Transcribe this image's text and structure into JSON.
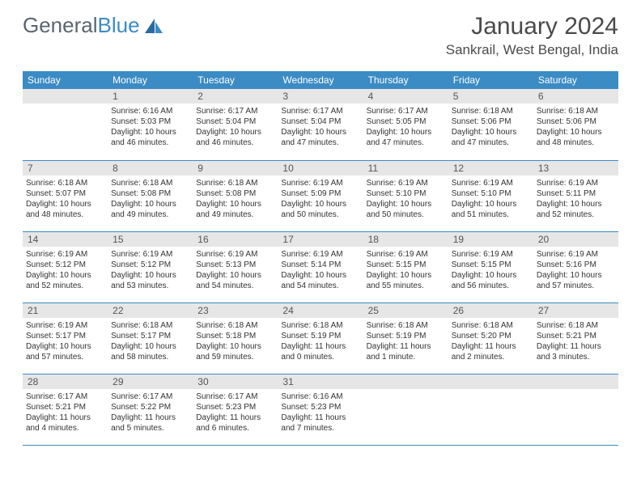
{
  "brand": {
    "name1": "General",
    "name2": "Blue"
  },
  "title": "January 2024",
  "location": "Sankrail, West Bengal, India",
  "colors": {
    "header_bg": "#3b8bc4",
    "header_text": "#ffffff",
    "daynum_bg": "#e6e6e6",
    "daynum_text": "#555555",
    "body_text": "#333333",
    "title_text": "#4a4a4a",
    "logo_gray": "#5a6570",
    "logo_blue": "#3b8bc4",
    "row_border": "#3b8bc4"
  },
  "weekdays": [
    "Sunday",
    "Monday",
    "Tuesday",
    "Wednesday",
    "Thursday",
    "Friday",
    "Saturday"
  ],
  "first_weekday_offset": 1,
  "days": [
    {
      "n": 1,
      "sunrise": "6:16 AM",
      "sunset": "5:03 PM",
      "daylight": "10 hours and 46 minutes."
    },
    {
      "n": 2,
      "sunrise": "6:17 AM",
      "sunset": "5:04 PM",
      "daylight": "10 hours and 46 minutes."
    },
    {
      "n": 3,
      "sunrise": "6:17 AM",
      "sunset": "5:04 PM",
      "daylight": "10 hours and 47 minutes."
    },
    {
      "n": 4,
      "sunrise": "6:17 AM",
      "sunset": "5:05 PM",
      "daylight": "10 hours and 47 minutes."
    },
    {
      "n": 5,
      "sunrise": "6:18 AM",
      "sunset": "5:06 PM",
      "daylight": "10 hours and 47 minutes."
    },
    {
      "n": 6,
      "sunrise": "6:18 AM",
      "sunset": "5:06 PM",
      "daylight": "10 hours and 48 minutes."
    },
    {
      "n": 7,
      "sunrise": "6:18 AM",
      "sunset": "5:07 PM",
      "daylight": "10 hours and 48 minutes."
    },
    {
      "n": 8,
      "sunrise": "6:18 AM",
      "sunset": "5:08 PM",
      "daylight": "10 hours and 49 minutes."
    },
    {
      "n": 9,
      "sunrise": "6:18 AM",
      "sunset": "5:08 PM",
      "daylight": "10 hours and 49 minutes."
    },
    {
      "n": 10,
      "sunrise": "6:19 AM",
      "sunset": "5:09 PM",
      "daylight": "10 hours and 50 minutes."
    },
    {
      "n": 11,
      "sunrise": "6:19 AM",
      "sunset": "5:10 PM",
      "daylight": "10 hours and 50 minutes."
    },
    {
      "n": 12,
      "sunrise": "6:19 AM",
      "sunset": "5:10 PM",
      "daylight": "10 hours and 51 minutes."
    },
    {
      "n": 13,
      "sunrise": "6:19 AM",
      "sunset": "5:11 PM",
      "daylight": "10 hours and 52 minutes."
    },
    {
      "n": 14,
      "sunrise": "6:19 AM",
      "sunset": "5:12 PM",
      "daylight": "10 hours and 52 minutes."
    },
    {
      "n": 15,
      "sunrise": "6:19 AM",
      "sunset": "5:12 PM",
      "daylight": "10 hours and 53 minutes."
    },
    {
      "n": 16,
      "sunrise": "6:19 AM",
      "sunset": "5:13 PM",
      "daylight": "10 hours and 54 minutes."
    },
    {
      "n": 17,
      "sunrise": "6:19 AM",
      "sunset": "5:14 PM",
      "daylight": "10 hours and 54 minutes."
    },
    {
      "n": 18,
      "sunrise": "6:19 AM",
      "sunset": "5:15 PM",
      "daylight": "10 hours and 55 minutes."
    },
    {
      "n": 19,
      "sunrise": "6:19 AM",
      "sunset": "5:15 PM",
      "daylight": "10 hours and 56 minutes."
    },
    {
      "n": 20,
      "sunrise": "6:19 AM",
      "sunset": "5:16 PM",
      "daylight": "10 hours and 57 minutes."
    },
    {
      "n": 21,
      "sunrise": "6:19 AM",
      "sunset": "5:17 PM",
      "daylight": "10 hours and 57 minutes."
    },
    {
      "n": 22,
      "sunrise": "6:18 AM",
      "sunset": "5:17 PM",
      "daylight": "10 hours and 58 minutes."
    },
    {
      "n": 23,
      "sunrise": "6:18 AM",
      "sunset": "5:18 PM",
      "daylight": "10 hours and 59 minutes."
    },
    {
      "n": 24,
      "sunrise": "6:18 AM",
      "sunset": "5:19 PM",
      "daylight": "11 hours and 0 minutes."
    },
    {
      "n": 25,
      "sunrise": "6:18 AM",
      "sunset": "5:19 PM",
      "daylight": "11 hours and 1 minute."
    },
    {
      "n": 26,
      "sunrise": "6:18 AM",
      "sunset": "5:20 PM",
      "daylight": "11 hours and 2 minutes."
    },
    {
      "n": 27,
      "sunrise": "6:18 AM",
      "sunset": "5:21 PM",
      "daylight": "11 hours and 3 minutes."
    },
    {
      "n": 28,
      "sunrise": "6:17 AM",
      "sunset": "5:21 PM",
      "daylight": "11 hours and 4 minutes."
    },
    {
      "n": 29,
      "sunrise": "6:17 AM",
      "sunset": "5:22 PM",
      "daylight": "11 hours and 5 minutes."
    },
    {
      "n": 30,
      "sunrise": "6:17 AM",
      "sunset": "5:23 PM",
      "daylight": "11 hours and 6 minutes."
    },
    {
      "n": 31,
      "sunrise": "6:16 AM",
      "sunset": "5:23 PM",
      "daylight": "11 hours and 7 minutes."
    }
  ],
  "labels": {
    "sunrise": "Sunrise:",
    "sunset": "Sunset:",
    "daylight": "Daylight:"
  }
}
